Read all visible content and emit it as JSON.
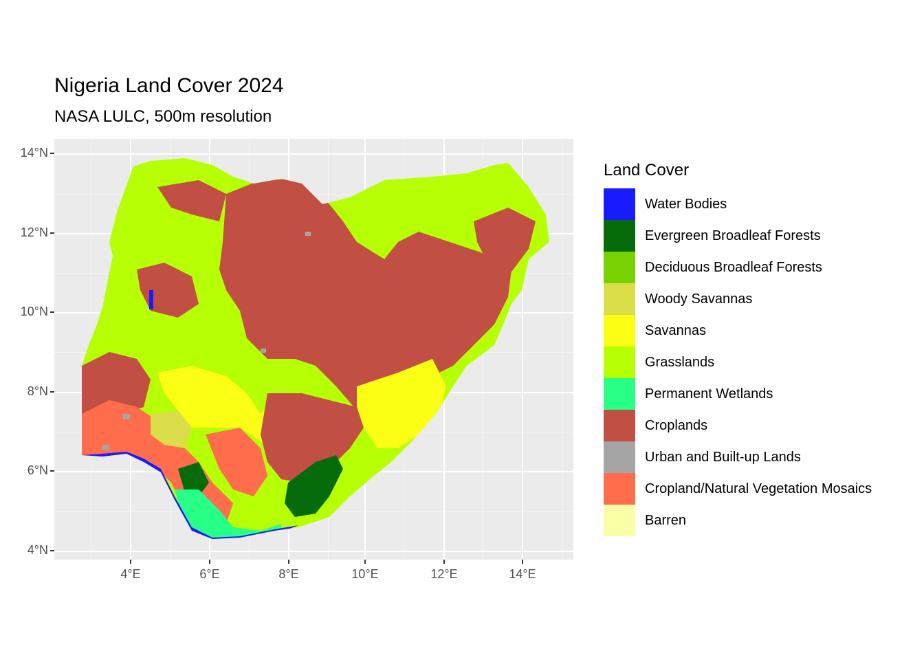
{
  "title": "Nigeria Land Cover 2024",
  "subtitle": "NASA LULC, 500m resolution",
  "axes": {
    "y_ticks": [
      "14°N",
      "12°N",
      "10°N",
      "8°N",
      "6°N",
      "4°N"
    ],
    "x_ticks": [
      "4°E",
      "6°E",
      "8°E",
      "10°E",
      "12°E",
      "14°E"
    ]
  },
  "legend": {
    "title": "Land Cover",
    "items": [
      {
        "label": "Water Bodies",
        "color": "#1a1aff"
      },
      {
        "label": "Evergreen Broadleaf Forests",
        "color": "#056b0b"
      },
      {
        "label": "Deciduous Broadleaf Forests",
        "color": "#78d203"
      },
      {
        "label": "Woody Savannas",
        "color": "#dade48"
      },
      {
        "label": "Savannas",
        "color": "#fbff13"
      },
      {
        "label": "Grasslands",
        "color": "#b6ff05"
      },
      {
        "label": "Permanent Wetlands",
        "color": "#27ff87"
      },
      {
        "label": "Croplands",
        "color": "#c24f44"
      },
      {
        "label": "Urban and Built-up Lands",
        "color": "#a5a5a5"
      },
      {
        "label": "Cropland/Natural Vegetation Mosaics",
        "color": "#ff6d4c"
      },
      {
        "label": "Barren",
        "color": "#f9ffa4"
      }
    ]
  }
}
